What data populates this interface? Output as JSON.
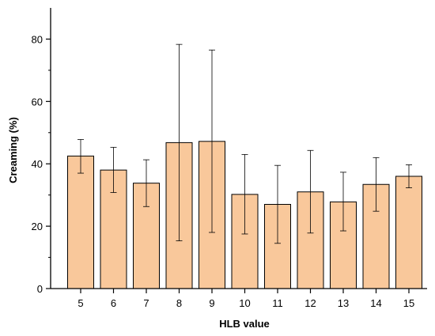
{
  "chart_data": {
    "type": "bar",
    "categories": [
      "5",
      "6",
      "7",
      "8",
      "9",
      "10",
      "11",
      "12",
      "13",
      "14",
      "15"
    ],
    "values": [
      42.5,
      38.0,
      33.8,
      46.8,
      47.2,
      30.2,
      27.0,
      31.0,
      27.8,
      33.4,
      36.0
    ],
    "error_low": [
      37.0,
      30.8,
      26.3,
      15.3,
      18.0,
      17.5,
      14.5,
      17.8,
      18.5,
      24.8,
      32.3
    ],
    "error_high": [
      47.8,
      45.3,
      41.3,
      78.3,
      76.5,
      43.0,
      39.5,
      44.3,
      37.3,
      42.0,
      39.7
    ],
    "xlabel": "HLB value",
    "ylabel": "Creaming (%)",
    "ylim": [
      0,
      90
    ],
    "yticks": [
      0,
      20,
      40,
      60,
      80
    ],
    "grid": false,
    "bar_color": "#f9c89b",
    "edge_color": "#000000"
  }
}
